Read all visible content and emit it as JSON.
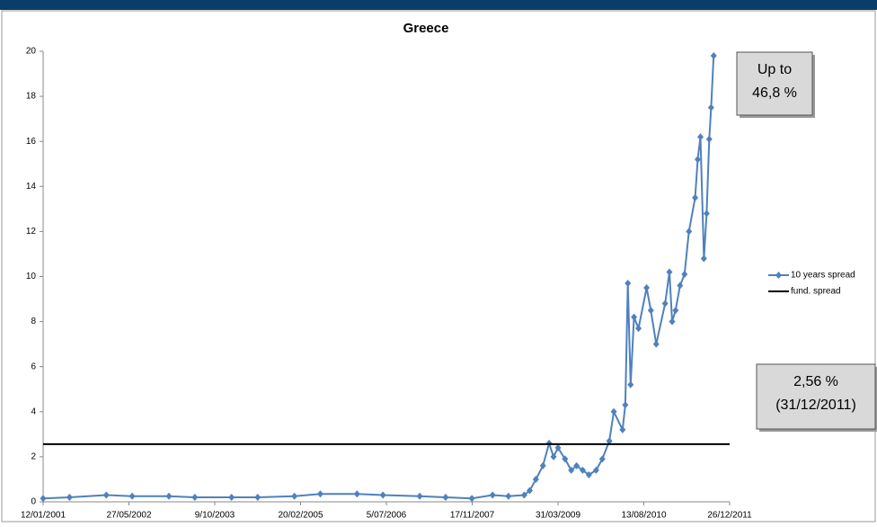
{
  "chart_data": {
    "type": "line",
    "title": "Greece",
    "x": [
      "12/01/2001",
      "15/06/2001",
      "15/01/2002",
      "15/06/2002",
      "15/01/2003",
      "15/06/2003",
      "15/01/2004",
      "15/06/2004",
      "15/01/2005",
      "15/06/2005",
      "15/01/2006",
      "15/06/2006",
      "15/01/2007",
      "15/06/2007",
      "15/11/2007",
      "15/03/2008",
      "15/06/2008",
      "15/09/2008",
      "17/10/2008",
      "22/11/2008",
      "02/01/2009",
      "07/02/2009",
      "05/03/2009",
      "31/03/2009",
      "11/05/2009",
      "16/06/2009",
      "17/07/2009",
      "22/08/2009",
      "27/09/2009",
      "08/11/2009",
      "14/12/2009",
      "24/01/2010",
      "19/02/2010",
      "11/04/2010",
      "27/04/2010",
      "12/05/2010",
      "28/05/2010",
      "17/06/2010",
      "13/07/2010",
      "29/08/2010",
      "23/09/2010",
      "24/10/2010",
      "15/12/2010",
      "09/01/2011",
      "25/01/2011",
      "14/02/2011",
      "12/03/2011",
      "07/04/2011",
      "03/05/2011",
      "08/06/2011",
      "23/06/2011",
      "09/07/2011",
      "29/07/2011",
      "14/08/2011",
      "29/08/2011",
      "09/09/2011",
      "24/09/2011"
    ],
    "series": [
      {
        "name": "10 years spread",
        "color": "#4f81bd",
        "values": [
          0.15,
          0.2,
          0.3,
          0.25,
          0.25,
          0.2,
          0.2,
          0.2,
          0.25,
          0.35,
          0.35,
          0.3,
          0.25,
          0.2,
          0.15,
          0.3,
          0.25,
          0.3,
          0.5,
          1.0,
          1.6,
          2.6,
          2.0,
          2.4,
          1.9,
          1.4,
          1.6,
          1.4,
          1.2,
          1.4,
          1.9,
          2.7,
          4.0,
          3.2,
          4.3,
          9.7,
          5.2,
          8.2,
          7.7,
          9.5,
          8.5,
          7.0,
          8.8,
          10.2,
          8.0,
          8.5,
          9.6,
          10.1,
          12.0,
          13.5,
          15.2,
          16.2,
          10.8,
          12.8,
          16.1,
          17.5,
          19.8
        ]
      },
      {
        "name": "fund. spread",
        "color": "#000000",
        "x": [
          "12/01/2001",
          "26/12/2011"
        ],
        "values": [
          2.56,
          2.56
        ]
      }
    ],
    "xlim": [
      "12/01/2001",
      "26/12/2011"
    ],
    "xticks": [
      "12/01/2001",
      "27/05/2002",
      "9/10/2003",
      "20/02/2005",
      "5/07/2006",
      "17/11/2007",
      "31/03/2009",
      "13/08/2010",
      "26/12/2011"
    ],
    "ylim": [
      0,
      20
    ],
    "yticks": [
      0,
      2,
      4,
      6,
      8,
      10,
      12,
      14,
      16,
      18,
      20
    ],
    "annotations": [
      [
        "Up to",
        "46,8 %"
      ],
      [
        "2,56 %",
        "(31/12/2011)"
      ]
    ],
    "legend": "right"
  }
}
